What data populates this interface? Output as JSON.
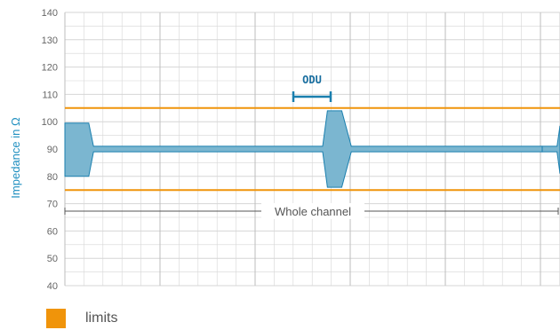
{
  "chart_data": {
    "type": "area",
    "title": "",
    "xlabel": "",
    "ylabel": "Impedance in Ω",
    "ylim": [
      40,
      140
    ],
    "yticks": [
      40,
      50,
      60,
      70,
      80,
      90,
      100,
      110,
      120,
      130,
      140
    ],
    "grid": true,
    "limits": {
      "upper": 105,
      "lower": 75
    },
    "annotations": {
      "odu": "ODU",
      "whole_channel": "Whole channel"
    },
    "series": [
      {
        "x": [
          0,
          5,
          6,
          53,
          54,
          55,
          58,
          60,
          100
        ],
        "upper": [
          99.5,
          99.5,
          91,
          91,
          91,
          104,
          104,
          91,
          91
        ],
        "lower": [
          80,
          80,
          89,
          89,
          89,
          76,
          76,
          89,
          89
        ]
      },
      {
        "x": [
          0,
          2.5,
          3
        ],
        "upper": [
          91,
          91,
          98.5
        ],
        "lower": [
          89,
          89,
          81
        ]
      }
    ],
    "legend": [
      {
        "label": "limits",
        "color": "#f0940a"
      }
    ],
    "legend_position": "bottom-left"
  },
  "colors": {
    "fill": "#7bb6d0",
    "stroke": "#1a7fae",
    "limit": "#f0940a",
    "grid": "#d6d6d6",
    "axis_label": "#1f8fc0"
  }
}
